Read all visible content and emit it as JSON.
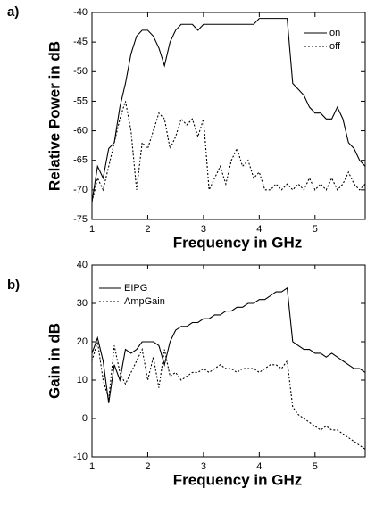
{
  "chart_data": [
    {
      "type": "line",
      "panel_label": "a)",
      "xlabel": "Frequency in GHz",
      "ylabel": "Relative Power in dB",
      "x": [
        1.0,
        1.1,
        1.2,
        1.3,
        1.4,
        1.5,
        1.6,
        1.7,
        1.8,
        1.9,
        2.0,
        2.1,
        2.2,
        2.3,
        2.4,
        2.5,
        2.6,
        2.7,
        2.8,
        2.9,
        3.0,
        3.1,
        3.2,
        3.3,
        3.4,
        3.5,
        3.6,
        3.7,
        3.8,
        3.9,
        4.0,
        4.1,
        4.2,
        4.3,
        4.4,
        4.5,
        4.6,
        4.7,
        4.8,
        4.9,
        5.0,
        5.1,
        5.2,
        5.3,
        5.4,
        5.5,
        5.6,
        5.7,
        5.8,
        5.9
      ],
      "series": [
        {
          "name": "on",
          "color": "#000000",
          "style": "solid",
          "values": [
            -72,
            -66,
            -68,
            -63,
            -62,
            -56,
            -52,
            -47,
            -44,
            -43,
            -43,
            -44,
            -46,
            -49,
            -45,
            -43,
            -42,
            -42,
            -42,
            -43,
            -42,
            -42,
            -42,
            -42,
            -42,
            -42,
            -42,
            -42,
            -42,
            -42,
            -41,
            -41,
            -41,
            -41,
            -41,
            -41,
            -52,
            -53,
            -54,
            -56,
            -57,
            -57,
            -58,
            -58,
            -56,
            -58,
            -62,
            -63,
            -65,
            -66
          ]
        },
        {
          "name": "off",
          "color": "#000000",
          "style": "dotted",
          "values": [
            -72,
            -68,
            -70,
            -66,
            -62,
            -58,
            -55,
            -60,
            -70,
            -62,
            -63,
            -60,
            -57,
            -58,
            -63,
            -61,
            -58,
            -59,
            -58,
            -61,
            -58,
            -70,
            -68,
            -66,
            -69,
            -65,
            -63,
            -66,
            -65,
            -68,
            -67,
            -70,
            -70,
            -69,
            -70,
            -69,
            -70,
            -69,
            -70,
            -68,
            -70,
            -69,
            -70,
            -68,
            -70,
            -69,
            -67,
            -69,
            -70,
            -69
          ]
        }
      ],
      "xlim": [
        1,
        5.9
      ],
      "xticks": [
        1,
        2,
        3,
        4,
        5
      ],
      "ylim": [
        -75,
        -40
      ],
      "yticks": [
        -75,
        -70,
        -65,
        -60,
        -55,
        -50,
        -45,
        -40
      ],
      "legend": "upper right"
    },
    {
      "type": "line",
      "panel_label": "b)",
      "xlabel": "Frequency in GHz",
      "ylabel": "Gain in dB",
      "x": [
        1.0,
        1.1,
        1.2,
        1.3,
        1.4,
        1.5,
        1.6,
        1.7,
        1.8,
        1.9,
        2.0,
        2.1,
        2.2,
        2.3,
        2.4,
        2.5,
        2.6,
        2.7,
        2.8,
        2.9,
        3.0,
        3.1,
        3.2,
        3.3,
        3.4,
        3.5,
        3.6,
        3.7,
        3.8,
        3.9,
        4.0,
        4.1,
        4.2,
        4.3,
        4.4,
        4.5,
        4.6,
        4.7,
        4.8,
        4.9,
        5.0,
        5.1,
        5.2,
        5.3,
        5.4,
        5.5,
        5.6,
        5.7,
        5.8,
        5.9
      ],
      "series": [
        {
          "name": "EIPG",
          "color": "#000000",
          "style": "solid",
          "values": [
            17,
            21,
            15,
            4,
            14,
            10,
            18,
            17,
            18,
            20,
            20,
            20,
            19,
            14,
            20,
            23,
            24,
            24,
            25,
            25,
            26,
            26,
            27,
            27,
            28,
            28,
            29,
            29,
            30,
            30,
            31,
            31,
            32,
            33,
            33,
            34,
            20,
            19,
            18,
            18,
            17,
            17,
            16,
            17,
            16,
            15,
            14,
            13,
            13,
            12
          ]
        },
        {
          "name": "AmpGain",
          "color": "#000000",
          "style": "dotted",
          "values": [
            15,
            20,
            10,
            5,
            19,
            12,
            9,
            12,
            15,
            18,
            10,
            16,
            8,
            18,
            11,
            12,
            10,
            11,
            12,
            12,
            13,
            12,
            13,
            14,
            13,
            13,
            12,
            13,
            13,
            13,
            12,
            13,
            14,
            14,
            13,
            15,
            3,
            1,
            0,
            -1,
            -2,
            -3,
            -2,
            -3,
            -3,
            -4,
            -5,
            -6,
            -7,
            -8
          ]
        }
      ],
      "xlim": [
        1,
        5.9
      ],
      "xticks": [
        1,
        2,
        3,
        4,
        5
      ],
      "ylim": [
        -10,
        40
      ],
      "yticks": [
        -10,
        0,
        10,
        20,
        30,
        40
      ],
      "legend": "upper left"
    }
  ]
}
